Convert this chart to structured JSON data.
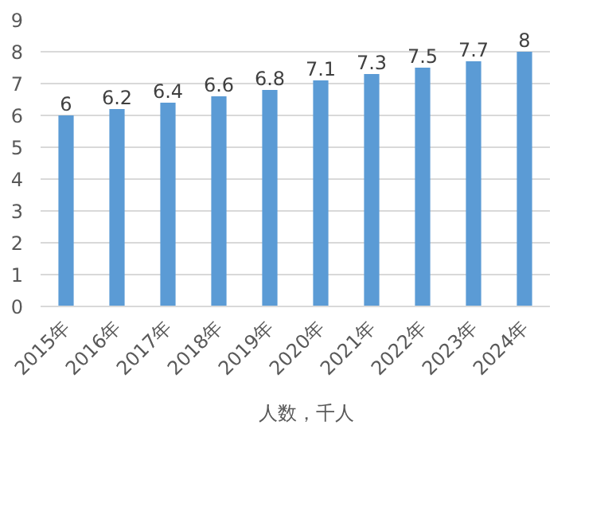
{
  "chart_data": {
    "type": "bar",
    "categories": [
      "2015年",
      "2016年",
      "2017年",
      "2018年",
      "2019年",
      "2020年",
      "2021年",
      "2022年",
      "2023年",
      "2024年"
    ],
    "series": [
      {
        "name": "人数，千人",
        "color": "#5b9bd5",
        "values": [
          6,
          6.2,
          6.4,
          6.6,
          6.8,
          7.1,
          7.3,
          7.5,
          7.7,
          8
        ]
      }
    ],
    "ylim": [
      0,
      9
    ],
    "yticks": [
      0,
      1,
      2,
      3,
      4,
      5,
      6,
      7,
      8,
      9
    ],
    "grid": "y",
    "legend": "bottom",
    "data_labels": true
  }
}
